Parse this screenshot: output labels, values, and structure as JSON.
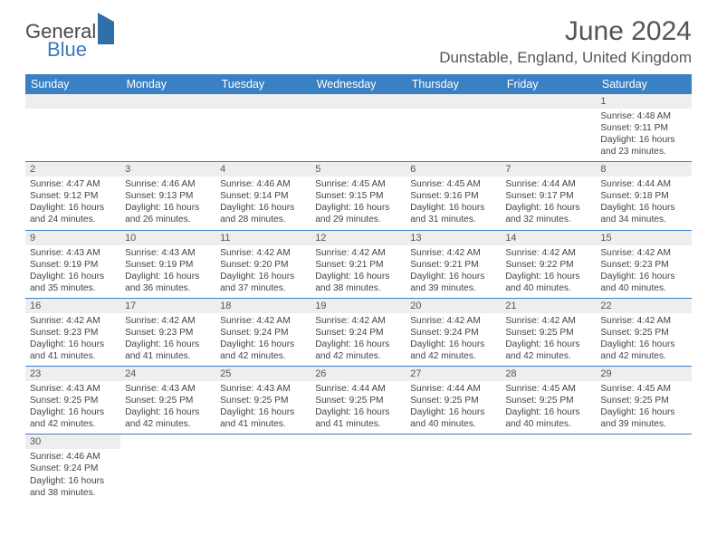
{
  "brand": {
    "first": "General",
    "second": "Blue"
  },
  "title": "June 2024",
  "location": "Dunstable, England, United Kingdom",
  "colors": {
    "header_bg": "#3a81c4",
    "header_text": "#ffffff",
    "daynum_bg": "#eeeeee",
    "cell_border": "#3a81c4",
    "text": "#444444",
    "title_text": "#555555"
  },
  "columns": [
    "Sunday",
    "Monday",
    "Tuesday",
    "Wednesday",
    "Thursday",
    "Friday",
    "Saturday"
  ],
  "weeks": [
    [
      null,
      null,
      null,
      null,
      null,
      null,
      {
        "d": "1",
        "sr": "4:48 AM",
        "ss": "9:11 PM",
        "dl": "16 hours and 23 minutes."
      }
    ],
    [
      {
        "d": "2",
        "sr": "4:47 AM",
        "ss": "9:12 PM",
        "dl": "16 hours and 24 minutes."
      },
      {
        "d": "3",
        "sr": "4:46 AM",
        "ss": "9:13 PM",
        "dl": "16 hours and 26 minutes."
      },
      {
        "d": "4",
        "sr": "4:46 AM",
        "ss": "9:14 PM",
        "dl": "16 hours and 28 minutes."
      },
      {
        "d": "5",
        "sr": "4:45 AM",
        "ss": "9:15 PM",
        "dl": "16 hours and 29 minutes."
      },
      {
        "d": "6",
        "sr": "4:45 AM",
        "ss": "9:16 PM",
        "dl": "16 hours and 31 minutes."
      },
      {
        "d": "7",
        "sr": "4:44 AM",
        "ss": "9:17 PM",
        "dl": "16 hours and 32 minutes."
      },
      {
        "d": "8",
        "sr": "4:44 AM",
        "ss": "9:18 PM",
        "dl": "16 hours and 34 minutes."
      }
    ],
    [
      {
        "d": "9",
        "sr": "4:43 AM",
        "ss": "9:19 PM",
        "dl": "16 hours and 35 minutes."
      },
      {
        "d": "10",
        "sr": "4:43 AM",
        "ss": "9:19 PM",
        "dl": "16 hours and 36 minutes."
      },
      {
        "d": "11",
        "sr": "4:42 AM",
        "ss": "9:20 PM",
        "dl": "16 hours and 37 minutes."
      },
      {
        "d": "12",
        "sr": "4:42 AM",
        "ss": "9:21 PM",
        "dl": "16 hours and 38 minutes."
      },
      {
        "d": "13",
        "sr": "4:42 AM",
        "ss": "9:21 PM",
        "dl": "16 hours and 39 minutes."
      },
      {
        "d": "14",
        "sr": "4:42 AM",
        "ss": "9:22 PM",
        "dl": "16 hours and 40 minutes."
      },
      {
        "d": "15",
        "sr": "4:42 AM",
        "ss": "9:23 PM",
        "dl": "16 hours and 40 minutes."
      }
    ],
    [
      {
        "d": "16",
        "sr": "4:42 AM",
        "ss": "9:23 PM",
        "dl": "16 hours and 41 minutes."
      },
      {
        "d": "17",
        "sr": "4:42 AM",
        "ss": "9:23 PM",
        "dl": "16 hours and 41 minutes."
      },
      {
        "d": "18",
        "sr": "4:42 AM",
        "ss": "9:24 PM",
        "dl": "16 hours and 42 minutes."
      },
      {
        "d": "19",
        "sr": "4:42 AM",
        "ss": "9:24 PM",
        "dl": "16 hours and 42 minutes."
      },
      {
        "d": "20",
        "sr": "4:42 AM",
        "ss": "9:24 PM",
        "dl": "16 hours and 42 minutes."
      },
      {
        "d": "21",
        "sr": "4:42 AM",
        "ss": "9:25 PM",
        "dl": "16 hours and 42 minutes."
      },
      {
        "d": "22",
        "sr": "4:42 AM",
        "ss": "9:25 PM",
        "dl": "16 hours and 42 minutes."
      }
    ],
    [
      {
        "d": "23",
        "sr": "4:43 AM",
        "ss": "9:25 PM",
        "dl": "16 hours and 42 minutes."
      },
      {
        "d": "24",
        "sr": "4:43 AM",
        "ss": "9:25 PM",
        "dl": "16 hours and 42 minutes."
      },
      {
        "d": "25",
        "sr": "4:43 AM",
        "ss": "9:25 PM",
        "dl": "16 hours and 41 minutes."
      },
      {
        "d": "26",
        "sr": "4:44 AM",
        "ss": "9:25 PM",
        "dl": "16 hours and 41 minutes."
      },
      {
        "d": "27",
        "sr": "4:44 AM",
        "ss": "9:25 PM",
        "dl": "16 hours and 40 minutes."
      },
      {
        "d": "28",
        "sr": "4:45 AM",
        "ss": "9:25 PM",
        "dl": "16 hours and 40 minutes."
      },
      {
        "d": "29",
        "sr": "4:45 AM",
        "ss": "9:25 PM",
        "dl": "16 hours and 39 minutes."
      }
    ],
    [
      {
        "d": "30",
        "sr": "4:46 AM",
        "ss": "9:24 PM",
        "dl": "16 hours and 38 minutes."
      },
      null,
      null,
      null,
      null,
      null,
      null
    ]
  ],
  "labels": {
    "sunrise": "Sunrise:",
    "sunset": "Sunset:",
    "daylight": "Daylight:"
  }
}
